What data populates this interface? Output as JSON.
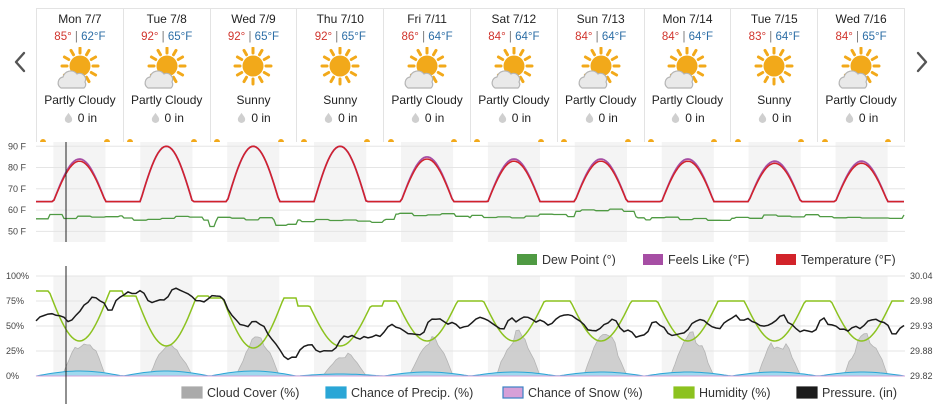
{
  "nav": {
    "prev_icon": "chevron-left-icon",
    "next_icon": "chevron-right-icon"
  },
  "days": [
    {
      "label": "Mon 7/7",
      "hi": "85°",
      "lo": "62°F",
      "condition": "Partly Cloudy",
      "icon": "partly-cloudy-icon",
      "precip": "0 in"
    },
    {
      "label": "Tue 7/8",
      "hi": "92°",
      "lo": "65°F",
      "condition": "Partly Cloudy",
      "icon": "partly-cloudy-icon",
      "precip": "0 in"
    },
    {
      "label": "Wed 7/9",
      "hi": "92°",
      "lo": "65°F",
      "condition": "Sunny",
      "icon": "sunny-icon",
      "precip": "0 in"
    },
    {
      "label": "Thu 7/10",
      "hi": "92°",
      "lo": "65°F",
      "condition": "Sunny",
      "icon": "sunny-icon",
      "precip": "0 in"
    },
    {
      "label": "Fri 7/11",
      "hi": "86°",
      "lo": "64°F",
      "condition": "Partly Cloudy",
      "icon": "partly-cloudy-icon",
      "precip": "0 in"
    },
    {
      "label": "Sat 7/12",
      "hi": "84°",
      "lo": "64°F",
      "condition": "Partly Cloudy",
      "icon": "partly-cloudy-icon",
      "precip": "0 in"
    },
    {
      "label": "Sun 7/13",
      "hi": "84°",
      "lo": "64°F",
      "condition": "Partly Cloudy",
      "icon": "partly-cloudy-icon",
      "precip": "0 in"
    },
    {
      "label": "Mon 7/14",
      "hi": "84°",
      "lo": "64°F",
      "condition": "Partly Cloudy",
      "icon": "partly-cloudy-icon",
      "precip": "0 in"
    },
    {
      "label": "Tue 7/15",
      "hi": "83°",
      "lo": "64°F",
      "condition": "Sunny",
      "icon": "sunny-icon",
      "precip": "0 in"
    },
    {
      "label": "Wed 7/16",
      "hi": "84°",
      "lo": "65°F",
      "condition": "Partly Cloudy",
      "icon": "partly-cloudy-icon",
      "precip": "0 in"
    }
  ],
  "colors": {
    "dew_point": "#4f9a43",
    "feels_like": "#a64ea4",
    "temperature": "#d2232a",
    "cloud_cover": "#aaaaaa",
    "chance_precip": "#2aa6d6",
    "chance_snow": "#d6a0d8",
    "humidity": "#8cc21f",
    "pressure": "#1b1b1b",
    "hi": "#d0342c",
    "lo": "#2c6ea6",
    "sun": "#f2a91a"
  },
  "chart_data": [
    {
      "type": "line",
      "y_ticks": [
        "90 F",
        "80 F",
        "70 F",
        "60 F",
        "50 F"
      ],
      "ylim": [
        45,
        92
      ],
      "x_days": 10,
      "legend": [
        "Dew Point (°)",
        "Feels Like (°F)",
        "Temperature (°F)"
      ],
      "legend_placement": "bottom-right",
      "grid": true,
      "series": [
        {
          "name": "Temperature (°F)",
          "daily_highs": [
            83,
            90,
            90,
            90,
            84,
            83,
            83,
            83,
            82,
            82
          ],
          "daily_lows": [
            64,
            64,
            64,
            64,
            64,
            64,
            64,
            64,
            64,
            64
          ]
        },
        {
          "name": "Feels Like (°F)",
          "daily_highs": [
            84,
            90,
            90,
            90,
            85,
            84,
            84,
            84,
            83,
            83
          ],
          "daily_lows": [
            64,
            64,
            64,
            64,
            64,
            64,
            64,
            64,
            64,
            64
          ]
        },
        {
          "name": "Dew Point (°)",
          "daily_values": [
            57,
            56,
            53,
            55,
            56,
            57,
            57,
            56,
            57,
            57
          ]
        }
      ]
    },
    {
      "type": "area",
      "y_ticks_left": [
        "100%",
        "75%",
        "50%",
        "25%",
        "0%"
      ],
      "y_ticks_right": [
        "30.04",
        "29.98",
        "29.93",
        "29.88",
        "29.82"
      ],
      "ylim_left": [
        0,
        100
      ],
      "ylim_right": [
        29.82,
        30.04
      ],
      "x_days": 10,
      "legend": [
        "Cloud Cover (%)",
        "Chance of Precip. (%)",
        "Chance of Snow (%)",
        "Humidity (%)",
        "Pressure. (in)"
      ],
      "legend_placement": "bottom",
      "grid": true,
      "series": [
        {
          "name": "Humidity (%)",
          "daily_max": [
            85,
            80,
            78,
            70,
            75,
            75,
            75,
            75,
            75,
            75
          ],
          "daily_min": [
            35,
            30,
            28,
            30,
            35,
            35,
            35,
            35,
            35,
            35
          ]
        },
        {
          "name": "Cloud Cover (%)",
          "daily_peak": [
            40,
            35,
            40,
            25,
            45,
            50,
            45,
            45,
            40,
            45
          ]
        },
        {
          "name": "Chance of Precip. (%)",
          "daily_peak": [
            5,
            5,
            5,
            2,
            4,
            4,
            4,
            4,
            4,
            4
          ]
        },
        {
          "name": "Chance of Snow (%)",
          "daily_peak": [
            0,
            0,
            0,
            0,
            0,
            0,
            0,
            0,
            0,
            0
          ]
        },
        {
          "name": "Pressure. (in)",
          "daily_values": [
            29.94,
            29.99,
            30.0,
            29.86,
            29.92,
            29.94,
            29.95,
            29.92,
            29.94,
            29.93
          ]
        }
      ]
    }
  ]
}
